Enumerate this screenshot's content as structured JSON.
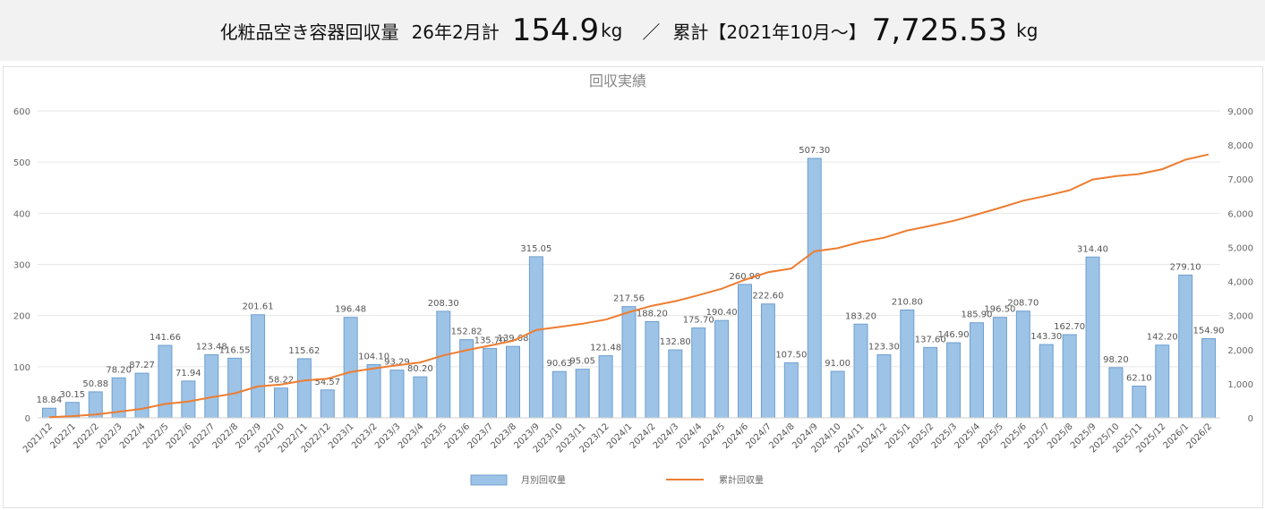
{
  "header": {
    "label": "化粧品空き容器回収量",
    "month_label": "26年2月計",
    "month_value": "154.9",
    "month_unit": "kg",
    "separator": "／",
    "total_label": "累計【2021年10月～】",
    "total_value": "7,725.53",
    "total_unit": "kg"
  },
  "chart_data": {
    "type": "bar",
    "title": "回収実績",
    "categories": [
      "2021/12",
      "2022/1",
      "2022/2",
      "2022/3",
      "2022/4",
      "2022/5",
      "2022/6",
      "2022/7",
      "2022/8",
      "2022/9",
      "2022/10",
      "2022/11",
      "2022/12",
      "2023/1",
      "2023/2",
      "2023/3",
      "2023/4",
      "2023/5",
      "2023/6",
      "2023/7",
      "2023/8",
      "2023/9",
      "2023/10",
      "2023/11",
      "2023/12",
      "2024/1",
      "2024/2",
      "2024/3",
      "2024/4",
      "2024/5",
      "2024/6",
      "2024/7",
      "2024/8",
      "2024/9",
      "2024/10",
      "2024/11",
      "2024/12",
      "2025/1",
      "2025/2",
      "2025/3",
      "2025/4",
      "2025/5",
      "2025/6",
      "2025/7",
      "2025/8",
      "2025/9",
      "2025/10",
      "2025/11",
      "2025/12",
      "2026/1",
      "2026/2"
    ],
    "series": [
      {
        "name": "月別回収量",
        "type": "bar",
        "axis": "left",
        "color": "#9dc3e6",
        "values": [
          18.84,
          30.15,
          50.88,
          78.2,
          87.27,
          141.66,
          71.94,
          123.48,
          116.55,
          201.61,
          58.22,
          115.62,
          54.57,
          196.48,
          104.1,
          93.29,
          80.2,
          208.3,
          152.82,
          135.7,
          139.68,
          315.05,
          90.63,
          95.05,
          121.48,
          217.56,
          188.2,
          132.8,
          175.7,
          190.4,
          260.9,
          222.6,
          107.5,
          507.3,
          91.0,
          183.2,
          123.3,
          210.8,
          137.6,
          146.9,
          185.9,
          196.5,
          208.7,
          143.3,
          162.7,
          314.4,
          98.2,
          62.1,
          142.2,
          279.1,
          154.9
        ]
      },
      {
        "name": "累計回収量",
        "type": "line",
        "axis": "right",
        "color": "#ed7d31",
        "values": [
          18.84,
          48.99,
          99.87,
          178.07,
          265.34,
          407.0,
          478.94,
          602.42,
          718.97,
          920.58,
          978.8,
          1094.42,
          1148.99,
          1345.47,
          1449.57,
          1542.86,
          1623.06,
          1831.36,
          1984.18,
          2119.88,
          2259.56,
          2574.61,
          2665.24,
          2760.29,
          2881.77,
          3099.33,
          3287.53,
          3420.33,
          3596.03,
          3786.43,
          4047.33,
          4269.93,
          4377.43,
          4884.73,
          4975.73,
          5158.93,
          5282.23,
          5493.03,
          5630.63,
          5777.53,
          5963.43,
          6159.93,
          6368.63,
          6511.93,
          6674.63,
          6989.03,
          7087.23,
          7149.33,
          7291.53,
          7570.63,
          7725.53
        ]
      }
    ],
    "yleft": {
      "range": [
        0,
        600
      ],
      "ticks": [
        "0",
        "100",
        "200",
        "300",
        "400",
        "500",
        "600"
      ]
    },
    "yright": {
      "range": [
        0,
        9000
      ],
      "ticks": [
        "0",
        "1,000",
        "2,000",
        "3,000",
        "4,000",
        "5,000",
        "6,000",
        "7,000",
        "8,000",
        "9,000"
      ]
    },
    "grid": true,
    "legend": "bottom"
  }
}
